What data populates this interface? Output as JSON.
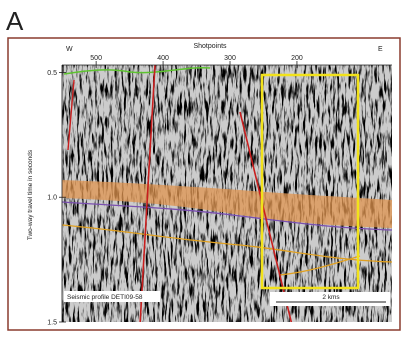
{
  "figure": {
    "panel_label": "A",
    "x_axis": {
      "label": "Shotpoints",
      "west": "W",
      "east": "E",
      "xlim": [
        551,
        58
      ],
      "xticks": [
        500,
        400,
        300,
        200
      ]
    },
    "y_axis": {
      "label": "Two-way travel time in seconds",
      "ylim": [
        0.47,
        1.5
      ],
      "yticks": [
        0.5,
        1.0,
        1.5
      ]
    },
    "profile_label": "Seismic profile DETI09-58",
    "scale_bar": "2 kms"
  }
}
